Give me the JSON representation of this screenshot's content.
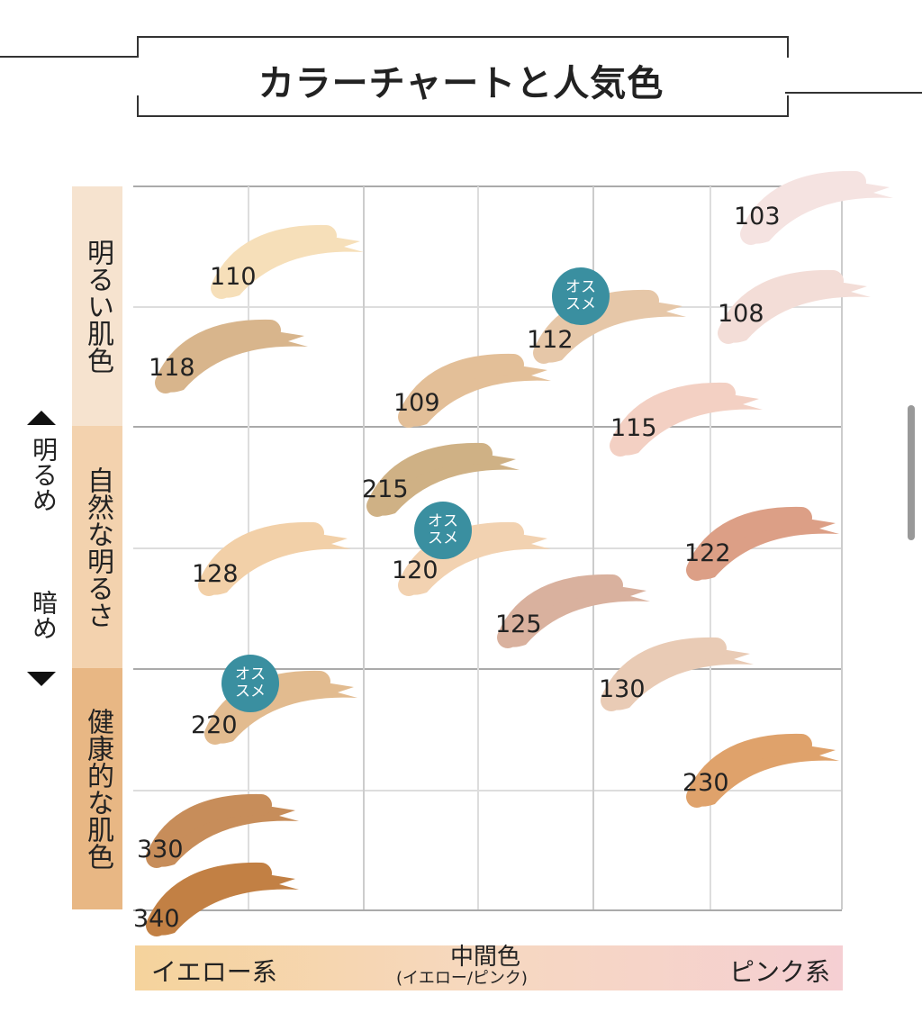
{
  "title": "カラーチャートと人気色",
  "vertical_axis": {
    "up": "明るめ",
    "down": "暗め"
  },
  "bands": [
    {
      "label": "明るい肌色",
      "color": "#f6e3cf"
    },
    {
      "label": "自然な明るさ",
      "color": "#f3d2ae"
    },
    {
      "label": "健康的な肌色",
      "color": "#e8b784"
    }
  ],
  "horizontal_axis": {
    "left": "イエロー系",
    "middle": "中間色",
    "middle_sub": "(イエロー/ピンク)",
    "right": "ピンク系"
  },
  "badge_text": "オス\nスメ",
  "swatches": [
    {
      "code": "110",
      "color": "#f6dfb9"
    },
    {
      "code": "118",
      "color": "#d8b58c"
    },
    {
      "code": "109",
      "color": "#e3bf98"
    },
    {
      "code": "112",
      "color": "#e6c7a8"
    },
    {
      "code": "103",
      "color": "#f5e3e1"
    },
    {
      "code": "108",
      "color": "#f3ddd7"
    },
    {
      "code": "115",
      "color": "#f3d0c3"
    },
    {
      "code": "215",
      "color": "#cfb185"
    },
    {
      "code": "120",
      "color": "#f2d2b1"
    },
    {
      "code": "128",
      "color": "#f2d0a8"
    },
    {
      "code": "125",
      "color": "#d9b19e"
    },
    {
      "code": "122",
      "color": "#dc9f86"
    },
    {
      "code": "130",
      "color": "#e9cbb5"
    },
    {
      "code": "220",
      "color": "#e2bb8f"
    },
    {
      "code": "230",
      "color": "#dfa26b"
    },
    {
      "code": "330",
      "color": "#c78d5a"
    },
    {
      "code": "340",
      "color": "#c28044"
    }
  ]
}
